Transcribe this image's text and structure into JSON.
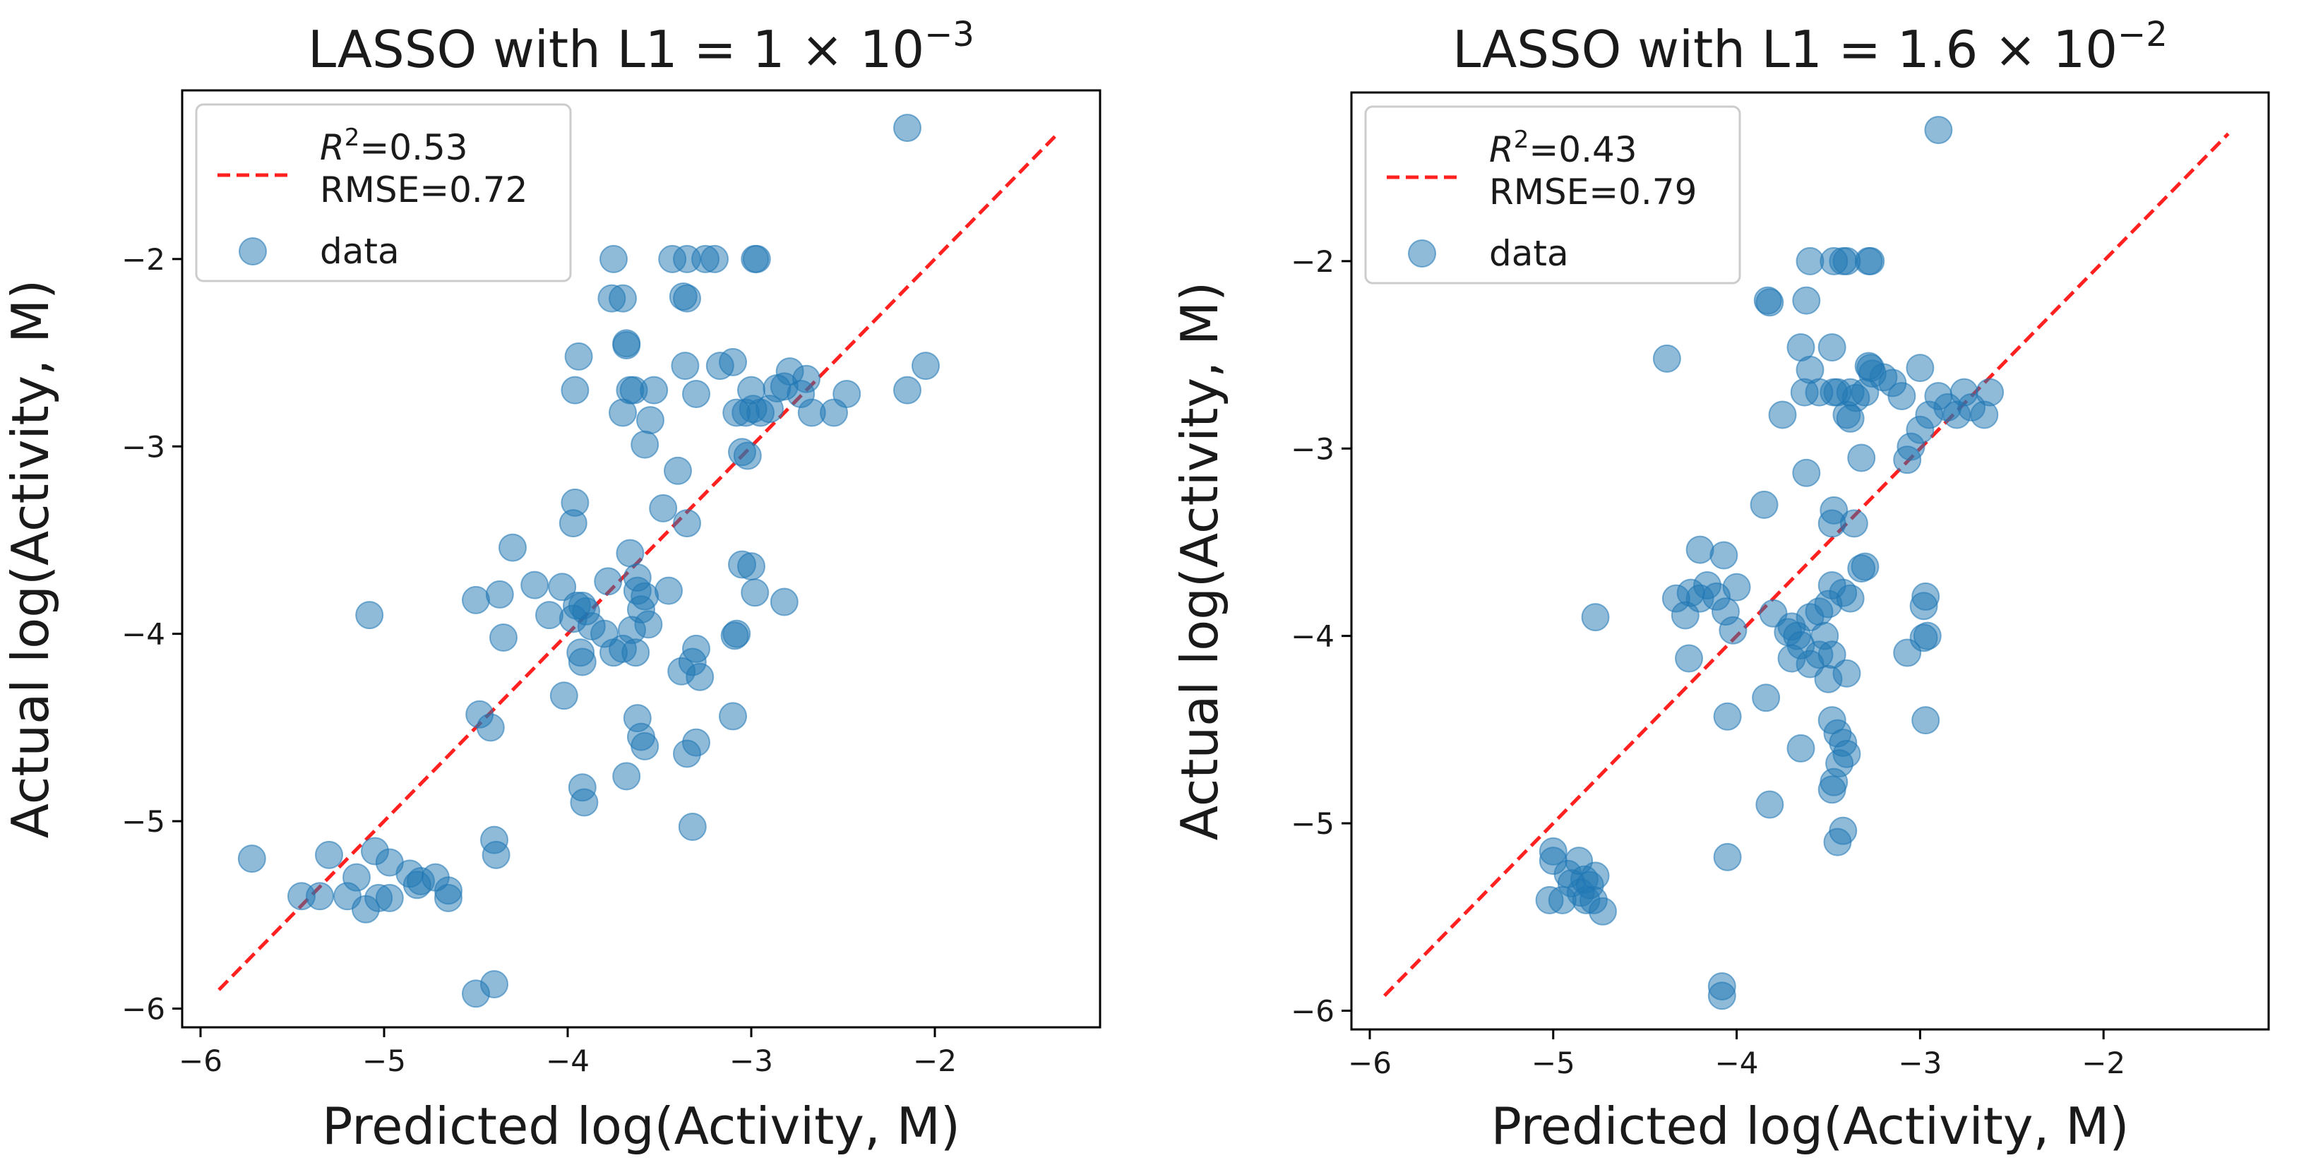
{
  "chart_data": [
    {
      "type": "scatter",
      "title_prefix": "LASSO with L1 = 1 × 10",
      "title_exp": "−3",
      "xlabel": "Predicted log(Activity, M)",
      "ylabel": "Actual log(Activity, M)",
      "xlim": [
        -6.1,
        -1.1
      ],
      "ylim": [
        -6.1,
        -1.1
      ],
      "xticks": [
        -6,
        -5,
        -4,
        -3,
        -2
      ],
      "yticks": [
        -2,
        -3,
        -4,
        -5,
        -6
      ],
      "tick_labels": [
        "−6",
        "−5",
        "−4",
        "−3",
        "−2"
      ],
      "legend": {
        "r2_symbol": "R",
        "r2_exp": "2",
        "r2_value": "=0.53",
        "rmse": "RMSE=0.72",
        "data_label": "data",
        "position": "top-left"
      },
      "fit_line": {
        "x": [
          -5.9,
          -1.33
        ],
        "y": [
          -5.9,
          -1.33
        ],
        "color": "#ff2020",
        "style": "dashed"
      },
      "marker_color": "#1f77b4",
      "points": [
        [
          -2.15,
          -1.3
        ],
        [
          -2.05,
          -2.57
        ],
        [
          -2.15,
          -2.7
        ],
        [
          -2.48,
          -2.72
        ],
        [
          -2.55,
          -2.82
        ],
        [
          -2.67,
          -2.82
        ],
        [
          -2.7,
          -2.64
        ],
        [
          -2.73,
          -2.72
        ],
        [
          -2.79,
          -2.6
        ],
        [
          -2.82,
          -2.68
        ],
        [
          -2.86,
          -2.69
        ],
        [
          -2.9,
          -2.8
        ],
        [
          -2.95,
          -2.82
        ],
        [
          -2.99,
          -2.8
        ],
        [
          -3.03,
          -2.82
        ],
        [
          -3.08,
          -2.82
        ],
        [
          -3.0,
          -2.7
        ],
        [
          -3.1,
          -2.55
        ],
        [
          -3.17,
          -2.57
        ],
        [
          -3.3,
          -2.72
        ],
        [
          -3.2,
          -2.0
        ],
        [
          -3.25,
          -2.0
        ],
        [
          -3.35,
          -2.0
        ],
        [
          -2.97,
          -2.0
        ],
        [
          -2.98,
          -2.0
        ],
        [
          -3.43,
          -2.0
        ],
        [
          -3.35,
          -2.21
        ],
        [
          -3.37,
          -2.2
        ],
        [
          -3.36,
          -2.57
        ],
        [
          -3.75,
          -2.0
        ],
        [
          -3.76,
          -2.21
        ],
        [
          -3.7,
          -2.21
        ],
        [
          -3.68,
          -2.45
        ],
        [
          -3.68,
          -2.46
        ],
        [
          -3.66,
          -2.7
        ],
        [
          -3.64,
          -2.7
        ],
        [
          -3.53,
          -2.7
        ],
        [
          -3.7,
          -2.82
        ],
        [
          -3.55,
          -2.86
        ],
        [
          -3.58,
          -2.99
        ],
        [
          -3.94,
          -2.52
        ],
        [
          -3.96,
          -2.7
        ],
        [
          -3.05,
          -3.03
        ],
        [
          -3.02,
          -3.05
        ],
        [
          -3.4,
          -3.13
        ],
        [
          -3.48,
          -3.33
        ],
        [
          -3.35,
          -3.41
        ],
        [
          -3.96,
          -3.3
        ],
        [
          -3.97,
          -3.41
        ],
        [
          -4.3,
          -3.54
        ],
        [
          -3.05,
          -3.63
        ],
        [
          -3.0,
          -3.64
        ],
        [
          -2.98,
          -3.78
        ],
        [
          -2.82,
          -3.83
        ],
        [
          -3.45,
          -3.77
        ],
        [
          -3.58,
          -3.8
        ],
        [
          -3.62,
          -3.77
        ],
        [
          -3.66,
          -3.57
        ],
        [
          -3.62,
          -3.7
        ],
        [
          -3.6,
          -3.87
        ],
        [
          -3.56,
          -3.95
        ],
        [
          -3.65,
          -3.98
        ],
        [
          -3.7,
          -4.08
        ],
        [
          -3.75,
          -4.1
        ],
        [
          -3.8,
          -4.0
        ],
        [
          -3.87,
          -3.96
        ],
        [
          -3.9,
          -3.88
        ],
        [
          -3.92,
          -3.85
        ],
        [
          -3.95,
          -3.85
        ],
        [
          -3.97,
          -3.92
        ],
        [
          -4.03,
          -3.75
        ],
        [
          -4.1,
          -3.9
        ],
        [
          -4.18,
          -3.74
        ],
        [
          -4.37,
          -3.79
        ],
        [
          -4.5,
          -3.82
        ],
        [
          -3.78,
          -3.72
        ],
        [
          -3.63,
          -4.1
        ],
        [
          -3.93,
          -4.1
        ],
        [
          -3.92,
          -4.15
        ],
        [
          -4.02,
          -4.33
        ],
        [
          -4.35,
          -4.02
        ],
        [
          -3.3,
          -4.08
        ],
        [
          -3.32,
          -4.15
        ],
        [
          -3.38,
          -4.2
        ],
        [
          -3.28,
          -4.23
        ],
        [
          -3.08,
          -4.0
        ],
        [
          -3.09,
          -4.01
        ],
        [
          -3.1,
          -4.44
        ],
        [
          -3.62,
          -4.45
        ],
        [
          -3.6,
          -4.55
        ],
        [
          -3.58,
          -4.6
        ],
        [
          -3.68,
          -4.76
        ],
        [
          -4.48,
          -4.43
        ],
        [
          -4.42,
          -4.5
        ],
        [
          -3.3,
          -4.58
        ],
        [
          -3.35,
          -4.64
        ],
        [
          -3.92,
          -4.82
        ],
        [
          -3.91,
          -4.9
        ],
        [
          -3.32,
          -5.03
        ],
        [
          -4.4,
          -5.1
        ],
        [
          -4.39,
          -5.18
        ],
        [
          -5.08,
          -3.9
        ],
        [
          -5.72,
          -5.2
        ],
        [
          -5.3,
          -5.18
        ],
        [
          -5.05,
          -5.16
        ],
        [
          -4.97,
          -5.22
        ],
        [
          -4.86,
          -5.28
        ],
        [
          -4.8,
          -5.32
        ],
        [
          -4.82,
          -5.34
        ],
        [
          -4.72,
          -5.3
        ],
        [
          -4.65,
          -5.37
        ],
        [
          -4.65,
          -5.41
        ],
        [
          -5.15,
          -5.3
        ],
        [
          -5.2,
          -5.4
        ],
        [
          -5.35,
          -5.4
        ],
        [
          -5.45,
          -5.4
        ],
        [
          -5.1,
          -5.47
        ],
        [
          -5.03,
          -5.41
        ],
        [
          -4.97,
          -5.41
        ],
        [
          -4.5,
          -5.92
        ],
        [
          -4.4,
          -5.87
        ]
      ]
    },
    {
      "type": "scatter",
      "title_prefix": "LASSO with L1 = 1.6 × 10",
      "title_exp": "−2",
      "xlabel": "Predicted log(Activity, M)",
      "ylabel": "Actual log(Activity, M)",
      "xlim": [
        -6.1,
        -1.1
      ],
      "ylim": [
        -6.1,
        -1.1
      ],
      "xticks": [
        -6,
        -5,
        -4,
        -3,
        -2
      ],
      "yticks": [
        -2,
        -3,
        -4,
        -5,
        -6
      ],
      "tick_labels": [
        "−6",
        "−5",
        "−4",
        "−3",
        "−2"
      ],
      "legend": {
        "r2_symbol": "R",
        "r2_exp": "2",
        "r2_value": "=0.43",
        "rmse": "RMSE=0.79",
        "data_label": "data",
        "position": "top-left"
      },
      "fit_line": {
        "x": [
          -5.92,
          -1.32
        ],
        "y": [
          -5.92,
          -1.32
        ],
        "color": "#ff2020",
        "style": "dashed"
      },
      "marker_color": "#1f77b4",
      "points": [
        [
          -2.9,
          -1.3
        ],
        [
          -2.62,
          -2.7
        ],
        [
          -2.72,
          -2.78
        ],
        [
          -2.65,
          -2.82
        ],
        [
          -2.76,
          -2.7
        ],
        [
          -2.8,
          -2.82
        ],
        [
          -2.85,
          -2.78
        ],
        [
          -2.9,
          -2.72
        ],
        [
          -2.95,
          -2.82
        ],
        [
          -3.0,
          -2.57
        ],
        [
          -3.0,
          -2.9
        ],
        [
          -3.05,
          -2.99
        ],
        [
          -3.07,
          -3.06
        ],
        [
          -3.1,
          -2.72
        ],
        [
          -3.15,
          -2.65
        ],
        [
          -3.2,
          -2.62
        ],
        [
          -3.26,
          -2.6
        ],
        [
          -3.27,
          -2.57
        ],
        [
          -3.28,
          -2.56
        ],
        [
          -3.3,
          -2.7
        ],
        [
          -3.35,
          -2.73
        ],
        [
          -3.4,
          -2.82
        ],
        [
          -3.38,
          -2.7
        ],
        [
          -3.45,
          -2.7
        ],
        [
          -3.47,
          -2.7
        ],
        [
          -3.48,
          -2.46
        ],
        [
          -3.55,
          -2.7
        ],
        [
          -3.6,
          -2.58
        ],
        [
          -3.65,
          -2.46
        ],
        [
          -3.63,
          -2.7
        ],
        [
          -3.27,
          -2.0
        ],
        [
          -3.28,
          -2.0
        ],
        [
          -3.4,
          -2.0
        ],
        [
          -3.42,
          -2.0
        ],
        [
          -3.47,
          -2.0
        ],
        [
          -3.6,
          -2.0
        ],
        [
          -3.62,
          -2.21
        ],
        [
          -3.82,
          -2.22
        ],
        [
          -3.83,
          -2.21
        ],
        [
          -3.75,
          -2.82
        ],
        [
          -3.38,
          -2.84
        ],
        [
          -3.32,
          -3.05
        ],
        [
          -3.62,
          -3.13
        ],
        [
          -3.85,
          -3.3
        ],
        [
          -3.36,
          -3.4
        ],
        [
          -3.47,
          -3.33
        ],
        [
          -3.48,
          -3.4
        ],
        [
          -3.3,
          -3.63
        ],
        [
          -3.32,
          -3.64
        ],
        [
          -4.38,
          -2.52
        ],
        [
          -4.07,
          -3.57
        ],
        [
          -4.2,
          -3.54
        ],
        [
          -4.0,
          -3.74
        ],
        [
          -4.11,
          -3.79
        ],
        [
          -4.16,
          -3.73
        ],
        [
          -4.2,
          -3.8
        ],
        [
          -4.25,
          -3.77
        ],
        [
          -4.33,
          -3.8
        ],
        [
          -4.28,
          -3.89
        ],
        [
          -4.02,
          -3.97
        ],
        [
          -4.06,
          -3.87
        ],
        [
          -3.8,
          -3.88
        ],
        [
          -3.7,
          -3.95
        ],
        [
          -3.72,
          -3.98
        ],
        [
          -3.67,
          -4.0
        ],
        [
          -3.65,
          -4.05
        ],
        [
          -3.7,
          -4.12
        ],
        [
          -3.6,
          -3.9
        ],
        [
          -3.55,
          -3.87
        ],
        [
          -3.5,
          -3.83
        ],
        [
          -3.48,
          -3.73
        ],
        [
          -3.42,
          -3.77
        ],
        [
          -3.38,
          -3.8
        ],
        [
          -3.52,
          -4.0
        ],
        [
          -3.48,
          -4.1
        ],
        [
          -3.55,
          -4.1
        ],
        [
          -3.5,
          -4.23
        ],
        [
          -3.4,
          -4.2
        ],
        [
          -3.6,
          -4.15
        ],
        [
          -4.26,
          -4.12
        ],
        [
          -4.05,
          -4.43
        ],
        [
          -3.84,
          -4.33
        ],
        [
          -3.48,
          -4.45
        ],
        [
          -3.45,
          -4.52
        ],
        [
          -3.42,
          -4.57
        ],
        [
          -3.4,
          -4.63
        ],
        [
          -3.44,
          -4.68
        ],
        [
          -3.47,
          -4.78
        ],
        [
          -3.48,
          -4.82
        ],
        [
          -3.65,
          -4.6
        ],
        [
          -3.82,
          -4.9
        ],
        [
          -3.42,
          -5.04
        ],
        [
          -3.45,
          -5.1
        ],
        [
          -4.05,
          -5.18
        ],
        [
          -2.97,
          -3.79
        ],
        [
          -2.98,
          -3.84
        ],
        [
          -2.96,
          -4.0
        ],
        [
          -2.98,
          -4.01
        ],
        [
          -3.07,
          -4.09
        ],
        [
          -2.97,
          -4.45
        ],
        [
          -4.77,
          -3.9
        ],
        [
          -5.0,
          -5.15
        ],
        [
          -5.0,
          -5.2
        ],
        [
          -4.92,
          -5.27
        ],
        [
          -4.9,
          -5.32
        ],
        [
          -4.83,
          -5.3
        ],
        [
          -4.85,
          -5.37
        ],
        [
          -4.8,
          -5.33
        ],
        [
          -4.82,
          -5.41
        ],
        [
          -4.78,
          -5.41
        ],
        [
          -4.73,
          -5.47
        ],
        [
          -4.86,
          -5.2
        ],
        [
          -4.77,
          -5.28
        ],
        [
          -4.95,
          -5.41
        ],
        [
          -5.02,
          -5.41
        ],
        [
          -4.08,
          -5.87
        ],
        [
          -4.08,
          -5.92
        ]
      ]
    }
  ]
}
